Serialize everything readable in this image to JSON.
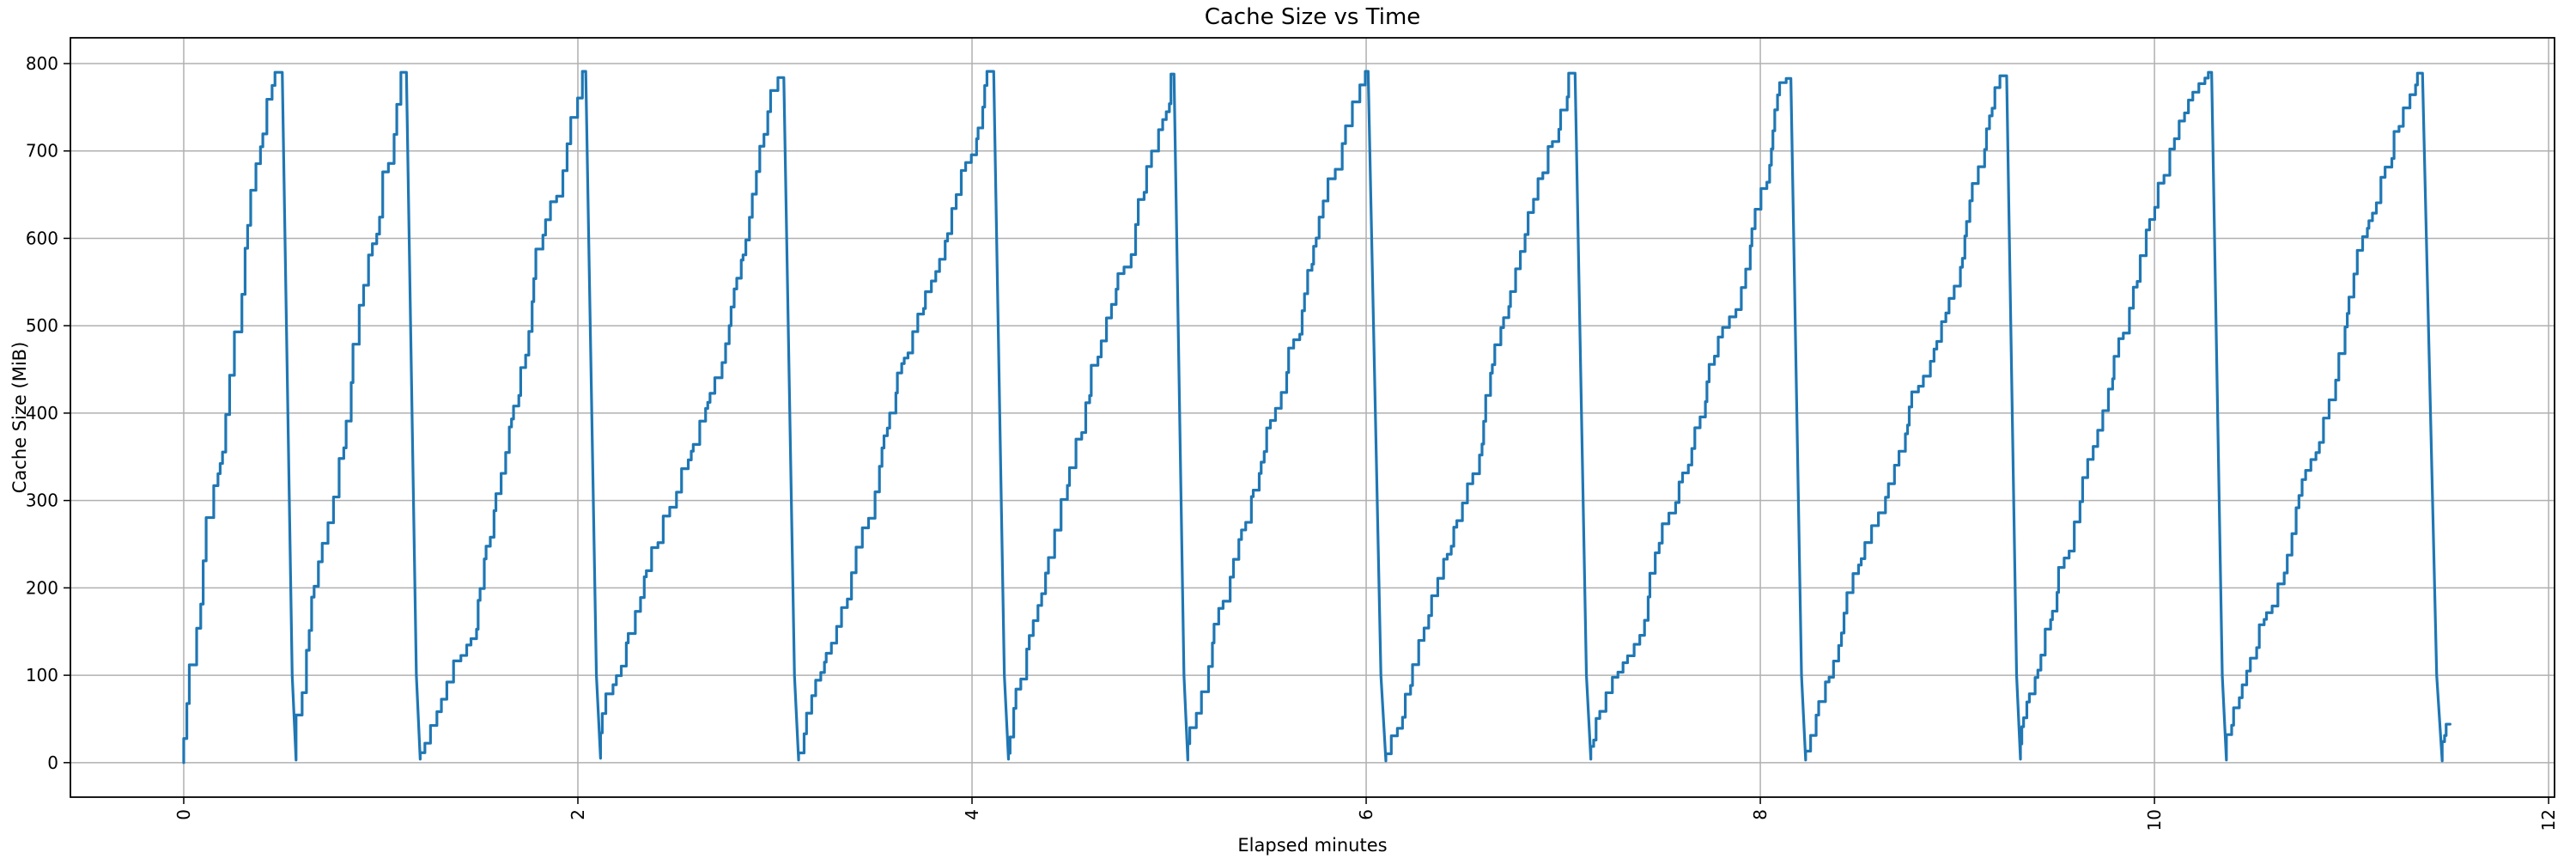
{
  "chart_data": {
    "type": "line",
    "title": "Cache Size vs Time",
    "xlabel": "Elapsed minutes",
    "ylabel": "Cache Size (MiB)",
    "series_name": "cache size",
    "line_color": "#1f77b4",
    "grid_color": "#b0b0b0",
    "spine_color": "#000000",
    "background_color": "#ffffff",
    "grid": true,
    "legend_position": "none",
    "xlim": [
      -0.575,
      12.03
    ],
    "ylim": [
      -39.5,
      829.5
    ],
    "xticks": [
      0,
      2,
      4,
      6,
      8,
      10,
      12
    ],
    "yticks": [
      0,
      100,
      200,
      300,
      400,
      500,
      600,
      700,
      800
    ],
    "x_tick_rotation_deg": 90,
    "pattern": "staircase sawtooth: cache grows in small random increments to ~790 MiB then flushes abruptly to ~0",
    "teeth": [
      {
        "start": 0.0,
        "start_value": 0,
        "peak_time": 0.5,
        "peak_value": 790
      },
      {
        "start": 0.57,
        "start_value": 3,
        "peak_time": 1.13,
        "peak_value": 790
      },
      {
        "start": 1.2,
        "start_value": 4,
        "peak_time": 2.04,
        "peak_value": 791
      },
      {
        "start": 2.115,
        "start_value": 5,
        "peak_time": 3.045,
        "peak_value": 784
      },
      {
        "start": 3.12,
        "start_value": 3,
        "peak_time": 4.11,
        "peak_value": 791
      },
      {
        "start": 4.185,
        "start_value": 4,
        "peak_time": 5.025,
        "peak_value": 788
      },
      {
        "start": 5.095,
        "start_value": 3,
        "peak_time": 6.01,
        "peak_value": 791
      },
      {
        "start": 6.1,
        "start_value": 2,
        "peak_time": 7.06,
        "peak_value": 789
      },
      {
        "start": 7.14,
        "start_value": 4,
        "peak_time": 8.155,
        "peak_value": 783
      },
      {
        "start": 8.23,
        "start_value": 3,
        "peak_time": 9.25,
        "peak_value": 786
      },
      {
        "start": 9.32,
        "start_value": 4,
        "peak_time": 10.29,
        "peak_value": 790
      },
      {
        "start": 10.365,
        "start_value": 3,
        "peak_time": 11.36,
        "peak_value": 789
      }
    ],
    "tail": {
      "drop_end_time": 11.46,
      "drop_end_value": 2,
      "steps": [
        [
          11.46,
          24
        ],
        [
          11.472,
          31
        ],
        [
          11.48,
          44
        ]
      ],
      "end_time": 11.5,
      "end_value": 44
    }
  }
}
